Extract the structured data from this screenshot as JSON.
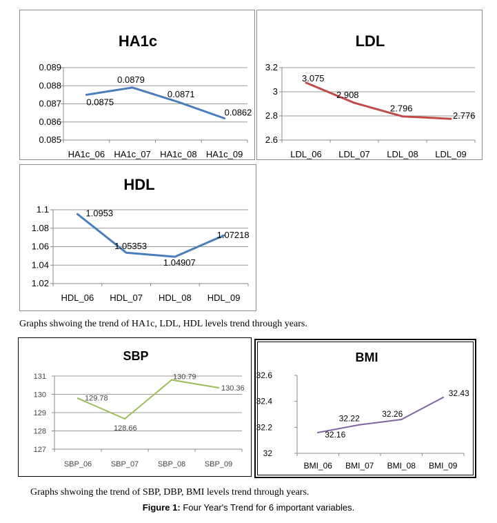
{
  "captions": {
    "top": "Graphs shwoing the trend of  HA1c, LDL, HDL levels trend through years.",
    "bottom": "Graphs shwoing the trend of  SBP, DBP, BMI levels trend through years.",
    "figure_label": "Figure 1:",
    "figure_text": " Four Year's Trend for 6 important variables."
  },
  "colors": {
    "blue": "#4a7ebb",
    "red": "#be4b48",
    "olive": "#9bbb59",
    "purple": "#8064a2"
  },
  "chart_data": [
    {
      "id": "ha1c",
      "type": "line",
      "title": "HA1c",
      "categories": [
        "HA1c_06",
        "HA1c_07",
        "HA1c_08",
        "HA1c_09"
      ],
      "values": [
        0.0875,
        0.0879,
        0.0871,
        0.0862
      ],
      "labels": [
        "0.0875",
        "0.0879",
        "0.0871",
        "0.0862"
      ],
      "ylim": [
        0.085,
        0.089
      ],
      "yticks": [
        "0.085",
        "0.086",
        "0.087",
        "0.088",
        "0.089"
      ],
      "color": "#4a7ebb",
      "grid": true
    },
    {
      "id": "ldl",
      "type": "line",
      "title": "LDL",
      "categories": [
        "LDL_06",
        "LDL_07",
        "LDL_08",
        "LDL_09"
      ],
      "values": [
        3.075,
        2.908,
        2.796,
        2.776
      ],
      "labels": [
        "3.075",
        "2.908",
        "2.796",
        "2.776"
      ],
      "ylim": [
        2.6,
        3.2
      ],
      "yticks": [
        "2.6",
        "2.8",
        "3",
        "3.2"
      ],
      "color": "#be4b48",
      "grid": true
    },
    {
      "id": "hdl",
      "type": "line",
      "title": "HDL",
      "categories": [
        "HDL_06",
        "HDL_07",
        "HDL_08",
        "HDL_09"
      ],
      "values": [
        1.0953,
        1.05353,
        1.04907,
        1.07218
      ],
      "labels": [
        "1.0953",
        "1.05353",
        "1.04907",
        "1.07218"
      ],
      "ylim": [
        1.02,
        1.1
      ],
      "yticks": [
        "1.02",
        "1.04",
        "1.06",
        "1.08",
        "1.1"
      ],
      "color": "#4a7ebb",
      "grid": true
    },
    {
      "id": "sbp",
      "type": "line",
      "title": "SBP",
      "categories": [
        "SBP_06",
        "SBP_07",
        "SBP_08",
        "SBP_09"
      ],
      "values": [
        129.78,
        128.66,
        130.79,
        130.36
      ],
      "labels": [
        "129.78",
        "128.66",
        "130.79",
        "130.36"
      ],
      "ylim": [
        127,
        131
      ],
      "yticks": [
        "127",
        "128",
        "129",
        "130",
        "131"
      ],
      "color": "#9bbb59",
      "grid": true
    },
    {
      "id": "bmi",
      "type": "line",
      "title": "BMI",
      "categories": [
        "BMI_06",
        "BMI_07",
        "BMI_08",
        "BMI_09"
      ],
      "values": [
        32.16,
        32.22,
        32.26,
        32.43
      ],
      "labels": [
        "32.16",
        "32.22",
        "32.26",
        "32.43"
      ],
      "ylim": [
        32,
        32.6
      ],
      "yticks": [
        "32",
        "32.2",
        "32.4",
        "32.6"
      ],
      "color": "#8064a2",
      "grid": false
    }
  ]
}
